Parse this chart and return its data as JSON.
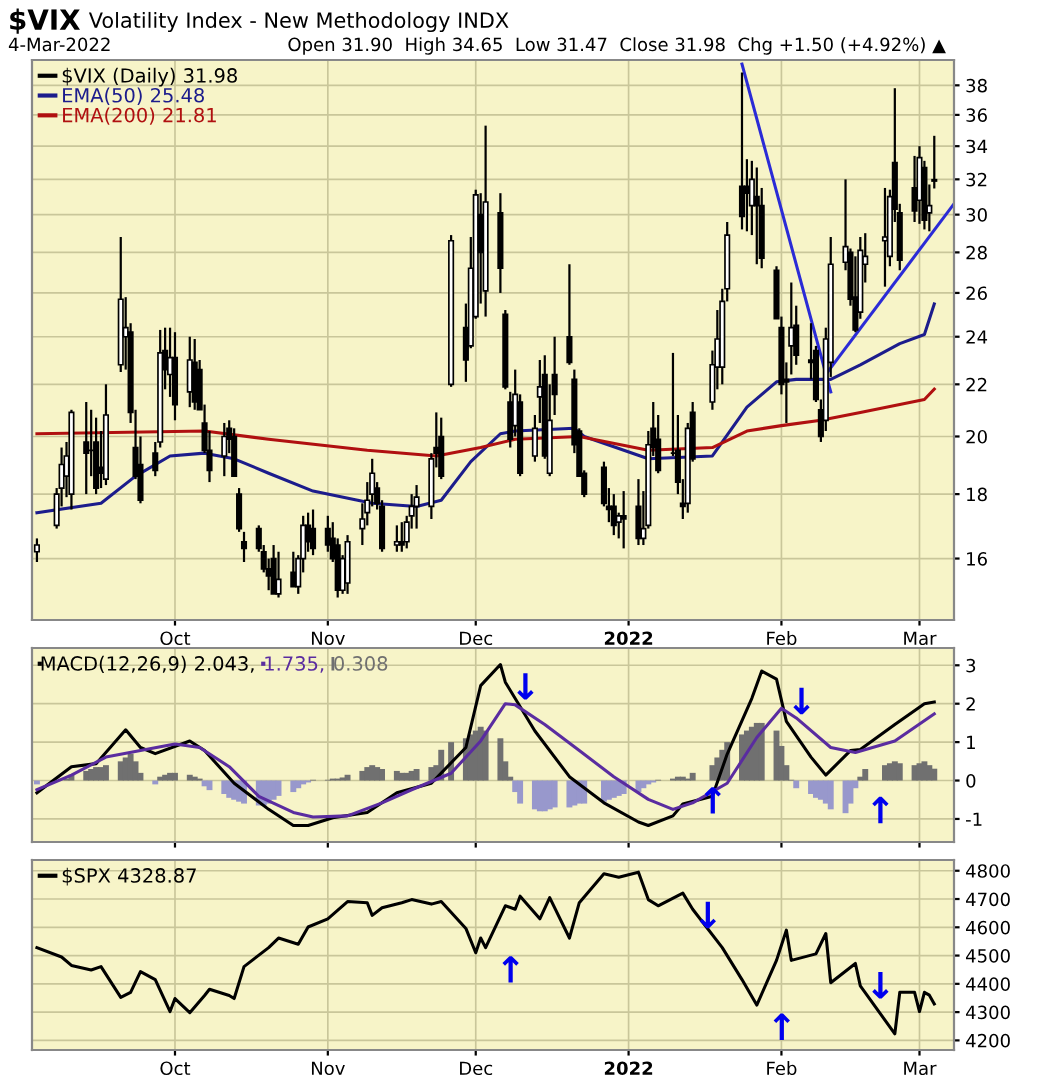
{
  "chart_data": [
    {
      "type": "candlestick",
      "title": "$VIX Volatility Index - New Methodology INDX",
      "subtitle": "4-Mar-2022",
      "annotations": [
        "Open 31.90  High 34.65  Low 31.47  Close 31.98  Chg +1.50 (+4.92%) ▲"
      ],
      "legend": "top left",
      "grid": true,
      "log": true,
      "xlim": [
        "2021-09-02",
        "2022-03-08"
      ],
      "xticks": [
        {
          "value": "2021-10-01",
          "label": "Oct"
        },
        {
          "value": "2021-11-01",
          "label": "Nov"
        },
        {
          "value": "2021-12-01",
          "label": "Dec"
        },
        {
          "value": "2022-01-01",
          "label": "2022"
        },
        {
          "value": "2022-02-01",
          "label": "Feb"
        },
        {
          "value": "2022-03-01",
          "label": "Mar"
        }
      ],
      "ylim": [
        14.3,
        39.8
      ],
      "yticks": [
        16,
        18,
        20,
        22,
        24,
        26,
        28,
        30,
        32,
        34,
        36,
        38
      ],
      "x": [
        "2021-09-03",
        "2021-09-07",
        "2021-09-08",
        "2021-09-09",
        "2021-09-10",
        "2021-09-13",
        "2021-09-14",
        "2021-09-15",
        "2021-09-16",
        "2021-09-17",
        "2021-09-20",
        "2021-09-21",
        "2021-09-22",
        "2021-09-23",
        "2021-09-24",
        "2021-09-27",
        "2021-09-28",
        "2021-09-29",
        "2021-09-30",
        "2021-10-01",
        "2021-10-04",
        "2021-10-05",
        "2021-10-06",
        "2021-10-07",
        "2021-10-08",
        "2021-10-11",
        "2021-10-12",
        "2021-10-13",
        "2021-10-14",
        "2021-10-15",
        "2021-10-18",
        "2021-10-19",
        "2021-10-20",
        "2021-10-21",
        "2021-10-22",
        "2021-10-25",
        "2021-10-26",
        "2021-10-27",
        "2021-10-28",
        "2021-10-29",
        "2021-11-01",
        "2021-11-02",
        "2021-11-03",
        "2021-11-04",
        "2021-11-05",
        "2021-11-08",
        "2021-11-09",
        "2021-11-10",
        "2021-11-11",
        "2021-11-12",
        "2021-11-15",
        "2021-11-16",
        "2021-11-17",
        "2021-11-18",
        "2021-11-19",
        "2021-11-22",
        "2021-11-23",
        "2021-11-24",
        "2021-11-26",
        "2021-11-29",
        "2021-11-30",
        "2021-12-01",
        "2021-12-02",
        "2021-12-03",
        "2021-12-06",
        "2021-12-07",
        "2021-12-08",
        "2021-12-09",
        "2021-12-10",
        "2021-12-13",
        "2021-12-14",
        "2021-12-15",
        "2021-12-16",
        "2021-12-17",
        "2021-12-20",
        "2021-12-21",
        "2021-12-22",
        "2021-12-23",
        "2021-12-27",
        "2021-12-28",
        "2021-12-29",
        "2021-12-30",
        "2021-12-31",
        "2022-01-03",
        "2022-01-04",
        "2022-01-05",
        "2022-01-06",
        "2022-01-07",
        "2022-01-10",
        "2022-01-11",
        "2022-01-12",
        "2022-01-13",
        "2022-01-14",
        "2022-01-18",
        "2022-01-19",
        "2022-01-20",
        "2022-01-21",
        "2022-01-24",
        "2022-01-25",
        "2022-01-26",
        "2022-01-27",
        "2022-01-28",
        "2022-01-31",
        "2022-02-01",
        "2022-02-02",
        "2022-02-03",
        "2022-02-04",
        "2022-02-07",
        "2022-02-08",
        "2022-02-09",
        "2022-02-10",
        "2022-02-11",
        "2022-02-14",
        "2022-02-15",
        "2022-02-16",
        "2022-02-17",
        "2022-02-18",
        "2022-02-22",
        "2022-02-23",
        "2022-02-24",
        "2022-02-25",
        "2022-02-28",
        "2022-03-01",
        "2022-03-02",
        "2022-03-03",
        "2022-03-04"
      ],
      "series": [
        {
          "name": "$VIX (Daily) 31.98",
          "type": "candlestick",
          "color": "#000000",
          "ohlc": [
            [
              16.2,
              16.6,
              15.9,
              16.4
            ],
            [
              17.0,
              18.2,
              16.9,
              18.0
            ],
            [
              18.2,
              19.6,
              17.6,
              19.0
            ],
            [
              18.6,
              19.8,
              17.9,
              19.3
            ],
            [
              18.0,
              21.0,
              17.5,
              20.9
            ],
            [
              19.8,
              21.3,
              18.0,
              19.4
            ],
            [
              19.5,
              21.0,
              18.6,
              19.5
            ],
            [
              19.8,
              20.7,
              18.0,
              18.2
            ],
            [
              18.9,
              20.2,
              18.2,
              18.7
            ],
            [
              18.5,
              22.0,
              18.3,
              20.8
            ],
            [
              22.8,
              28.8,
              22.5,
              25.7
            ],
            [
              24.0,
              25.8,
              22.6,
              24.4
            ],
            [
              24.2,
              24.6,
              20.5,
              20.9
            ],
            [
              19.6,
              21.0,
              18.5,
              18.6
            ],
            [
              19.0,
              20.0,
              17.7,
              17.8
            ],
            [
              19.4,
              19.8,
              18.6,
              18.8
            ],
            [
              19.8,
              24.3,
              19.6,
              23.3
            ],
            [
              23.4,
              24.4,
              21.8,
              22.6
            ],
            [
              22.4,
              24.4,
              21.5,
              23.1
            ],
            [
              23.1,
              24.2,
              20.6,
              21.2
            ],
            [
              21.7,
              24.0,
              21.1,
              23.0
            ],
            [
              22.9,
              23.9,
              21.0,
              21.3
            ],
            [
              22.6,
              23.0,
              21.0,
              21.0
            ],
            [
              20.5,
              21.2,
              19.4,
              19.5
            ],
            [
              19.5,
              20.2,
              18.4,
              18.8
            ],
            [
              19.3,
              20.5,
              18.6,
              20.0
            ],
            [
              20.3,
              20.6,
              19.4,
              19.9
            ],
            [
              20.0,
              20.3,
              18.6,
              18.6
            ],
            [
              18.0,
              18.2,
              16.8,
              16.9
            ],
            [
              16.5,
              16.8,
              15.9,
              16.3
            ],
            [
              16.9,
              17.0,
              16.2,
              16.3
            ],
            [
              16.2,
              16.4,
              15.6,
              15.7
            ],
            [
              15.7,
              16.0,
              15.1,
              15.5
            ],
            [
              16.0,
              16.4,
              15.0,
              15.0
            ],
            [
              15.0,
              16.2,
              14.9,
              15.4
            ],
            [
              15.6,
              16.2,
              15.2,
              15.2
            ],
            [
              15.2,
              16.1,
              15.0,
              16.0
            ],
            [
              16.0,
              17.3,
              15.6,
              17.0
            ],
            [
              17.0,
              17.4,
              16.2,
              16.5
            ],
            [
              16.9,
              17.5,
              16.1,
              16.3
            ],
            [
              16.9,
              17.3,
              16.2,
              16.4
            ],
            [
              16.6,
              17.1,
              15.9,
              16.0
            ],
            [
              16.4,
              16.6,
              14.9,
              15.1
            ],
            [
              15.1,
              16.1,
              15.0,
              16.0
            ],
            [
              15.3,
              16.7,
              15.0,
              16.5
            ],
            [
              16.9,
              17.7,
              16.4,
              17.2
            ],
            [
              17.4,
              18.4,
              17.0,
              17.8
            ],
            [
              18.0,
              19.2,
              17.6,
              18.7
            ],
            [
              18.2,
              18.4,
              17.5,
              17.7
            ],
            [
              17.6,
              17.8,
              16.2,
              16.3
            ],
            [
              16.4,
              17.0,
              16.2,
              16.5
            ],
            [
              16.5,
              17.1,
              16.2,
              16.4
            ],
            [
              16.5,
              17.3,
              16.3,
              17.1
            ],
            [
              17.3,
              18.0,
              16.9,
              17.6
            ],
            [
              17.6,
              18.3,
              16.9,
              17.9
            ],
            [
              17.6,
              19.4,
              17.2,
              19.2
            ],
            [
              19.6,
              20.9,
              18.9,
              19.4
            ],
            [
              20.0,
              20.7,
              18.5,
              18.6
            ],
            [
              22.0,
              28.9,
              21.9,
              28.6
            ],
            [
              24.4,
              25.5,
              22.1,
              23.0
            ],
            [
              23.6,
              28.8,
              23.5,
              27.2
            ],
            [
              24.9,
              31.4,
              24.8,
              31.1
            ],
            [
              30.0,
              31.2,
              25.5,
              28.0
            ],
            [
              26.1,
              35.3,
              24.9,
              30.7
            ],
            [
              30.1,
              31.2,
              26.0,
              27.2
            ],
            [
              25.0,
              25.2,
              21.8,
              21.9
            ],
            [
              21.3,
              21.7,
              19.6,
              19.9
            ],
            [
              20.4,
              22.6,
              20.0,
              21.6
            ],
            [
              21.3,
              21.6,
              18.6,
              18.7
            ],
            [
              19.3,
              20.8,
              19.1,
              20.3
            ],
            [
              21.5,
              23.0,
              20.5,
              21.9
            ],
            [
              22.4,
              23.2,
              19.2,
              19.3
            ],
            [
              18.7,
              22.0,
              18.6,
              20.6
            ],
            [
              22.4,
              24.0,
              20.8,
              21.6
            ],
            [
              24.0,
              27.4,
              22.8,
              22.9
            ],
            [
              22.2,
              22.6,
              19.4,
              19.7
            ],
            [
              20.2,
              20.3,
              18.6,
              18.6
            ],
            [
              18.7,
              18.8,
              17.9,
              18.0
            ],
            [
              18.9,
              19.1,
              17.6,
              17.7
            ],
            [
              17.6,
              18.2,
              17.1,
              17.5
            ],
            [
              17.6,
              18.0,
              16.7,
              17.0
            ],
            [
              17.1,
              17.4,
              16.6,
              17.3
            ],
            [
              17.3,
              18.1,
              16.3,
              17.2
            ],
            [
              17.6,
              18.5,
              16.4,
              16.6
            ],
            [
              16.6,
              18.1,
              16.4,
              16.9
            ],
            [
              17.0,
              20.2,
              16.9,
              19.7
            ],
            [
              20.3,
              21.3,
              19.3,
              19.6
            ],
            [
              19.9,
              20.8,
              18.7,
              18.8
            ],
            [
              19.4,
              23.3,
              19.3,
              19.4
            ],
            [
              19.5,
              20.8,
              18.0,
              18.4
            ],
            [
              17.7,
              18.5,
              17.2,
              17.6
            ],
            [
              17.7,
              20.5,
              17.4,
              20.3
            ],
            [
              20.9,
              21.3,
              19.1,
              19.2
            ],
            [
              21.3,
              23.4,
              21.0,
              22.8
            ],
            [
              22.7,
              25.2,
              21.8,
              23.9
            ],
            [
              22.7,
              26.2,
              22.0,
              25.6
            ],
            [
              26.2,
              29.6,
              25.6,
              28.9
            ],
            [
              31.6,
              38.9,
              29.2,
              29.9
            ],
            [
              31.6,
              33.2,
              29.1,
              31.2
            ],
            [
              30.5,
              33.1,
              28.9,
              32.0
            ],
            [
              31.0,
              32.7,
              27.4,
              30.5
            ],
            [
              30.5,
              31.5,
              27.2,
              27.7
            ],
            [
              27.1,
              27.3,
              24.8,
              24.8
            ],
            [
              24.4,
              24.9,
              21.6,
              22.0
            ],
            [
              22.2,
              22.9,
              20.5,
              22.1
            ],
            [
              23.6,
              26.5,
              22.4,
              24.4
            ],
            [
              24.5,
              25.4,
              22.8,
              23.2
            ],
            [
              23.0,
              24.6,
              22.2,
              22.9
            ],
            [
              23.4,
              23.6,
              21.3,
              21.4
            ],
            [
              21.0,
              21.4,
              19.8,
              20.0
            ],
            [
              20.6,
              24.4,
              20.2,
              23.9
            ],
            [
              22.9,
              28.8,
              22.3,
              27.4
            ],
            [
              27.5,
              32.0,
              27.1,
              28.3
            ],
            [
              28.0,
              28.2,
              25.4,
              25.7
            ],
            [
              25.8,
              27.8,
              24.2,
              24.3
            ],
            [
              25.1,
              28.8,
              24.8,
              28.1
            ],
            [
              27.4,
              29.0,
              26.5,
              27.8
            ],
            [
              28.6,
              31.5,
              26.3,
              28.8
            ],
            [
              27.8,
              31.4,
              27.3,
              31.0
            ],
            [
              33.0,
              37.8,
              29.6,
              30.3
            ],
            [
              30.1,
              30.6,
              27.1,
              27.6
            ],
            [
              31.5,
              33.4,
              29.6,
              30.2
            ],
            [
              30.8,
              34.0,
              29.5,
              33.3
            ],
            [
              32.7,
              33.1,
              29.2,
              29.7
            ],
            [
              30.1,
              31.7,
              29.1,
              30.5
            ],
            [
              31.9,
              34.65,
              31.47,
              31.98
            ]
          ]
        },
        {
          "name": "EMA(50) 25.48",
          "type": "line",
          "color": "#1c1c8c",
          "x": [
            "2021-09-03",
            "2021-09-16",
            "2021-09-23",
            "2021-09-30",
            "2021-10-07",
            "2021-10-13",
            "2021-10-20",
            "2021-10-29",
            "2021-11-10",
            "2021-11-19",
            "2021-11-24",
            "2021-11-30",
            "2021-12-06",
            "2021-12-09",
            "2021-12-21",
            "2021-12-23",
            "2022-01-05",
            "2022-01-18",
            "2022-01-25",
            "2022-01-31",
            "2022-02-04",
            "2022-02-11",
            "2022-02-17",
            "2022-02-25",
            "2022-03-02",
            "2022-03-04"
          ],
          "values": [
            17.4,
            17.7,
            18.6,
            19.3,
            19.4,
            19.2,
            18.7,
            18.1,
            17.7,
            17.6,
            17.8,
            19.1,
            20.1,
            20.2,
            20.3,
            20.0,
            19.2,
            19.3,
            21.1,
            22.1,
            22.2,
            22.2,
            22.8,
            23.7,
            24.1,
            25.48
          ]
        },
        {
          "name": "EMA(200) 21.81",
          "type": "line",
          "color": "#b01010",
          "x": [
            "2021-09-03",
            "2021-10-07",
            "2021-10-20",
            "2021-11-09",
            "2021-11-23",
            "2021-12-02",
            "2021-12-09",
            "2021-12-22",
            "2022-01-05",
            "2022-01-18",
            "2022-01-25",
            "2022-02-01",
            "2022-02-09",
            "2022-02-17",
            "2022-03-02",
            "2022-03-04"
          ],
          "values": [
            20.1,
            20.2,
            19.9,
            19.5,
            19.3,
            19.6,
            19.9,
            20.0,
            19.5,
            19.6,
            20.2,
            20.4,
            20.6,
            20.9,
            21.4,
            21.81
          ]
        },
        {
          "type": "line",
          "color": "#2b2bd6",
          "x": [
            "2022-01-24",
            "2022-02-11"
          ],
          "values": [
            39.5,
            21.7
          ]
        },
        {
          "type": "line",
          "color": "#2b2bd6",
          "x": [
            "2022-02-10",
            "2022-03-08"
          ],
          "values": [
            22.4,
            30.6
          ]
        }
      ]
    },
    {
      "type": "bar",
      "legend": "top left",
      "grid": true,
      "tick_labels": "y",
      "xlim": [
        "2021-09-02",
        "2022-03-08"
      ],
      "ylim": [
        -1.6,
        3.45
      ],
      "yticks": [
        -1,
        0,
        1,
        2,
        3
      ],
      "x": [
        "2021-09-03",
        "2021-09-07",
        "2021-09-08",
        "2021-09-09",
        "2021-09-10",
        "2021-09-13",
        "2021-09-14",
        "2021-09-15",
        "2021-09-16",
        "2021-09-17",
        "2021-09-20",
        "2021-09-21",
        "2021-09-22",
        "2021-09-23",
        "2021-09-24",
        "2021-09-27",
        "2021-09-28",
        "2021-09-29",
        "2021-09-30",
        "2021-10-01",
        "2021-10-04",
        "2021-10-05",
        "2021-10-06",
        "2021-10-07",
        "2021-10-08",
        "2021-10-11",
        "2021-10-12",
        "2021-10-13",
        "2021-10-14",
        "2021-10-15",
        "2021-10-18",
        "2021-10-19",
        "2021-10-20",
        "2021-10-21",
        "2021-10-22",
        "2021-10-25",
        "2021-10-26",
        "2021-10-27",
        "2021-10-28",
        "2021-10-29",
        "2021-11-01",
        "2021-11-02",
        "2021-11-03",
        "2021-11-04",
        "2021-11-05",
        "2021-11-08",
        "2021-11-09",
        "2021-11-10",
        "2021-11-11",
        "2021-11-12",
        "2021-11-15",
        "2021-11-16",
        "2021-11-17",
        "2021-11-18",
        "2021-11-19",
        "2021-11-22",
        "2021-11-23",
        "2021-11-24",
        "2021-11-26",
        "2021-11-29",
        "2021-11-30",
        "2021-12-01",
        "2021-12-02",
        "2021-12-03",
        "2021-12-06",
        "2021-12-07",
        "2021-12-08",
        "2021-12-09",
        "2021-12-10",
        "2021-12-13",
        "2021-12-14",
        "2021-12-15",
        "2021-12-16",
        "2021-12-17",
        "2021-12-20",
        "2021-12-21",
        "2021-12-22",
        "2021-12-23",
        "2021-12-27",
        "2021-12-28",
        "2021-12-29",
        "2021-12-30",
        "2021-12-31",
        "2022-01-03",
        "2022-01-04",
        "2022-01-05",
        "2022-01-06",
        "2022-01-07",
        "2022-01-10",
        "2022-01-11",
        "2022-01-12",
        "2022-01-13",
        "2022-01-14",
        "2022-01-18",
        "2022-01-19",
        "2022-01-20",
        "2022-01-21",
        "2022-01-24",
        "2022-01-25",
        "2022-01-26",
        "2022-01-27",
        "2022-01-28",
        "2022-01-31",
        "2022-02-01",
        "2022-02-02",
        "2022-02-03",
        "2022-02-04",
        "2022-02-07",
        "2022-02-08",
        "2022-02-09",
        "2022-02-10",
        "2022-02-11",
        "2022-02-14",
        "2022-02-15",
        "2022-02-16",
        "2022-02-17",
        "2022-02-18",
        "2022-02-22",
        "2022-02-23",
        "2022-02-24",
        "2022-02-25",
        "2022-02-28",
        "2022-03-01",
        "2022-03-02",
        "2022-03-03",
        "2022-03-04"
      ],
      "annotations": [
        {
          "text": "↓",
          "x": "2021-12-06",
          "y": 3.02
        },
        {
          "text": "↓",
          "x": "2022-01-31",
          "y": 2.64
        },
        {
          "text": "↑",
          "x": "2022-01-13",
          "y": 0.05
        },
        {
          "text": "↑",
          "x": "2022-02-16",
          "y": -0.2
        }
      ],
      "series": [
        {
          "name": "MACD(12,26,9) 2.043,",
          "type": "line",
          "color": "#000000",
          "x": [
            "2021-09-03",
            "2021-09-10",
            "2021-09-15",
            "2021-09-21",
            "2021-09-24",
            "2021-09-27",
            "2021-10-04",
            "2021-10-07",
            "2021-10-13",
            "2021-10-20",
            "2021-10-25",
            "2021-10-28",
            "2021-11-02",
            "2021-11-09",
            "2021-11-15",
            "2021-11-22",
            "2021-11-29",
            "2021-12-02",
            "2021-12-06",
            "2021-12-07",
            "2021-12-13",
            "2021-12-20",
            "2021-12-27",
            "2022-01-03",
            "2022-01-05",
            "2022-01-10",
            "2022-01-12",
            "2022-01-18",
            "2022-01-21",
            "2022-01-26",
            "2022-01-28",
            "2022-01-31",
            "2022-02-02",
            "2022-02-07",
            "2022-02-10",
            "2022-02-15",
            "2022-02-17",
            "2022-02-24",
            "2022-03-02",
            "2022-03-04"
          ],
          "values": [
            -0.32,
            0.36,
            0.44,
            1.32,
            0.86,
            0.7,
            1.03,
            0.78,
            -0.07,
            -0.75,
            -1.17,
            -1.17,
            -0.97,
            -0.83,
            -0.32,
            -0.07,
            0.86,
            2.47,
            3.02,
            2.56,
            1.29,
            0.1,
            -0.58,
            -1.08,
            -1.17,
            -0.92,
            -0.61,
            -0.41,
            0.69,
            2.14,
            2.85,
            2.64,
            1.54,
            0.61,
            0.14,
            0.78,
            0.81,
            1.46,
            2.0,
            2.043
          ]
        },
        {
          "name": "1.735,",
          "type": "line",
          "color": "#5a2ca0",
          "x": [
            "2021-09-03",
            "2021-09-10",
            "2021-09-17",
            "2021-09-24",
            "2021-10-01",
            "2021-10-06",
            "2021-10-12",
            "2021-10-18",
            "2021-10-25",
            "2021-10-29",
            "2021-11-05",
            "2021-11-12",
            "2021-11-18",
            "2021-11-26",
            "2021-12-02",
            "2021-12-07",
            "2021-12-09",
            "2021-12-15",
            "2021-12-22",
            "2021-12-29",
            "2022-01-05",
            "2022-01-10",
            "2022-01-14",
            "2022-01-21",
            "2022-01-27",
            "2022-02-01",
            "2022-02-04",
            "2022-02-11",
            "2022-02-16",
            "2022-02-24",
            "2022-03-04"
          ],
          "values": [
            -0.24,
            0.14,
            0.61,
            0.78,
            0.95,
            0.86,
            0.36,
            -0.41,
            -0.83,
            -0.95,
            -0.92,
            -0.58,
            -0.24,
            0.19,
            1.03,
            2.0,
            1.97,
            1.46,
            0.78,
            0.1,
            -0.49,
            -0.75,
            -0.58,
            -0.07,
            1.12,
            1.88,
            1.63,
            0.86,
            0.73,
            1.03,
            1.735
          ]
        },
        {
          "name": "0.308",
          "type": "bar",
          "color": "#707070",
          "values": [
            -0.1,
            null,
            null,
            0.05,
            0.15,
            0.25,
            0.3,
            0.35,
            0.35,
            0.4,
            0.5,
            0.6,
            0.7,
            0.5,
            0.2,
            -0.1,
            0.1,
            0.15,
            0.2,
            0.2,
            0.15,
            0.1,
            0.05,
            -0.15,
            -0.25,
            -0.35,
            -0.45,
            -0.5,
            -0.55,
            -0.6,
            -0.65,
            -0.65,
            -0.6,
            -0.5,
            -0.4,
            -0.3,
            -0.2,
            -0.1,
            -0.05,
            0.02,
            0.02,
            0.05,
            0.05,
            0.08,
            0.15,
            0.25,
            0.35,
            0.4,
            0.35,
            0.3,
            0.25,
            0.2,
            0.2,
            0.25,
            0.3,
            0.35,
            0.4,
            0.8,
            1.0,
            1.1,
            1.2,
            1.3,
            1.4,
            1.3,
            1.1,
            0.5,
            0.1,
            -0.3,
            -0.6,
            -0.75,
            -0.8,
            -0.8,
            -0.75,
            -0.7,
            -0.7,
            -0.65,
            -0.6,
            -0.6,
            -0.55,
            -0.5,
            -0.45,
            -0.4,
            -0.35,
            -0.3,
            -0.2,
            -0.1,
            -0.05,
            0.02,
            0.05,
            0.1,
            0.1,
            0.05,
            0.2,
            0.4,
            0.6,
            0.8,
            1.0,
            1.2,
            1.3,
            1.4,
            1.5,
            1.5,
            1.3,
            0.9,
            0.4,
            0.02,
            -0.2,
            -0.35,
            -0.45,
            -0.5,
            -0.6,
            -0.75,
            -0.85,
            -0.6,
            -0.2,
            0.1,
            0.3,
            0.4,
            0.45,
            0.5,
            0.45,
            0.4,
            0.45,
            0.5,
            0.4,
            0.308
          ],
          "colors": [
            "#9898cc",
            "#9898cc",
            "#707070",
            "#707070",
            "#707070",
            "#707070",
            "#707070",
            "#707070",
            "#707070",
            "#707070",
            "#707070",
            "#707070",
            "#707070",
            "#707070",
            "#707070",
            "#9898cc",
            "#707070",
            "#707070",
            "#707070",
            "#707070",
            "#707070",
            "#707070",
            "#707070",
            "#9898cc",
            "#9898cc",
            "#9898cc",
            "#9898cc",
            "#9898cc",
            "#9898cc",
            "#9898cc",
            "#9898cc",
            "#9898cc",
            "#9898cc",
            "#9898cc",
            "#9898cc",
            "#9898cc",
            "#9898cc",
            "#9898cc",
            "#9898cc",
            "#707070",
            "#707070",
            "#707070",
            "#707070",
            "#707070",
            "#707070",
            "#707070",
            "#707070",
            "#707070",
            "#707070",
            "#707070",
            "#707070",
            "#707070",
            "#707070",
            "#707070",
            "#707070",
            "#707070",
            "#707070",
            "#707070",
            "#707070",
            "#707070",
            "#707070",
            "#707070",
            "#707070",
            "#707070",
            "#707070",
            "#707070",
            "#707070",
            "#9898cc",
            "#9898cc",
            "#9898cc",
            "#9898cc",
            "#9898cc",
            "#9898cc",
            "#9898cc",
            "#9898cc",
            "#9898cc",
            "#9898cc",
            "#9898cc",
            "#9898cc",
            "#9898cc",
            "#9898cc",
            "#9898cc",
            "#9898cc",
            "#9898cc",
            "#9898cc",
            "#9898cc",
            "#9898cc",
            "#707070",
            "#707070",
            "#707070",
            "#707070",
            "#707070",
            "#707070",
            "#707070",
            "#707070",
            "#707070",
            "#707070",
            "#707070",
            "#707070",
            "#707070",
            "#707070",
            "#707070",
            "#707070",
            "#707070",
            "#707070",
            "#707070",
            "#9898cc",
            "#9898cc",
            "#9898cc",
            "#9898cc",
            "#9898cc",
            "#9898cc",
            "#9898cc",
            "#9898cc",
            "#9898cc",
            "#707070",
            "#707070",
            "#707070",
            "#707070",
            "#707070",
            "#707070",
            "#707070",
            "#707070",
            "#707070",
            "#707070",
            "#707070"
          ]
        }
      ]
    },
    {
      "type": "line",
      "legend": "top left",
      "grid": true,
      "xlim": [
        "2021-09-02",
        "2022-03-08"
      ],
      "xticks": [
        {
          "value": "2021-10-01",
          "label": "Oct"
        },
        {
          "value": "2021-11-01",
          "label": "Nov"
        },
        {
          "value": "2021-12-01",
          "label": "Dec"
        },
        {
          "value": "2022-01-01",
          "label": "2022"
        },
        {
          "value": "2022-02-01",
          "label": "Feb"
        },
        {
          "value": "2022-03-01",
          "label": "Mar"
        }
      ],
      "ylim": [
        4166,
        4838
      ],
      "yticks": [
        4200,
        4300,
        4400,
        4500,
        4600,
        4700,
        4800
      ],
      "annotations": [
        {
          "text": "↓",
          "x": "2022-01-12",
          "y": 4721
        },
        {
          "text": "↑",
          "x": "2021-12-03",
          "y": 4528
        },
        {
          "text": "↑",
          "x": "2022-01-27",
          "y": 4325
        },
        {
          "text": "↓",
          "x": "2022-02-16",
          "y": 4472
        }
      ],
      "series": [
        {
          "name": "$SPX 4328.87",
          "color": "#000000",
          "x": [
            "2021-09-03",
            "2021-09-08",
            "2021-09-10",
            "2021-09-14",
            "2021-09-16",
            "2021-09-20",
            "2021-09-22",
            "2021-09-24",
            "2021-09-27",
            "2021-09-30",
            "2021-10-01",
            "2021-10-04",
            "2021-10-07",
            "2021-10-08",
            "2021-10-12",
            "2021-10-13",
            "2021-10-15",
            "2021-10-20",
            "2021-10-22",
            "2021-10-26",
            "2021-10-28",
            "2021-11-01",
            "2021-11-05",
            "2021-11-09",
            "2021-11-10",
            "2021-11-12",
            "2021-11-16",
            "2021-11-18",
            "2021-11-22",
            "2021-11-24",
            "2021-11-29",
            "2021-12-01",
            "2021-12-02",
            "2021-12-03",
            "2021-12-07",
            "2021-12-09",
            "2021-12-10",
            "2021-12-14",
            "2021-12-16",
            "2021-12-20",
            "2021-12-22",
            "2021-12-27",
            "2021-12-30",
            "2022-01-03",
            "2022-01-05",
            "2022-01-07",
            "2022-01-12",
            "2022-01-14",
            "2022-01-20",
            "2022-01-24",
            "2022-01-27",
            "2022-01-31",
            "2022-02-02",
            "2022-02-03",
            "2022-02-08",
            "2022-02-10",
            "2022-02-11",
            "2022-02-16",
            "2022-02-17",
            "2022-02-24",
            "2022-02-25",
            "2022-02-28",
            "2022-03-01",
            "2022-03-02",
            "2022-03-03",
            "2022-03-04"
          ],
          "values": [
            4528,
            4495,
            4465,
            4449,
            4461,
            4352,
            4370,
            4443,
            4415,
            4302,
            4348,
            4298,
            4359,
            4381,
            4359,
            4348,
            4461,
            4528,
            4562,
            4540,
            4601,
            4630,
            4691,
            4687,
            4642,
            4669,
            4687,
            4698,
            4682,
            4691,
            4596,
            4510,
            4562,
            4528,
            4676,
            4664,
            4710,
            4630,
            4705,
            4562,
            4687,
            4789,
            4777,
            4795,
            4698,
            4676,
            4721,
            4664,
            4528,
            4415,
            4325,
            4483,
            4590,
            4483,
            4506,
            4578,
            4404,
            4472,
            4393,
            4223,
            4370,
            4370,
            4302,
            4370,
            4360,
            4328.87
          ]
        }
      ]
    }
  ]
}
